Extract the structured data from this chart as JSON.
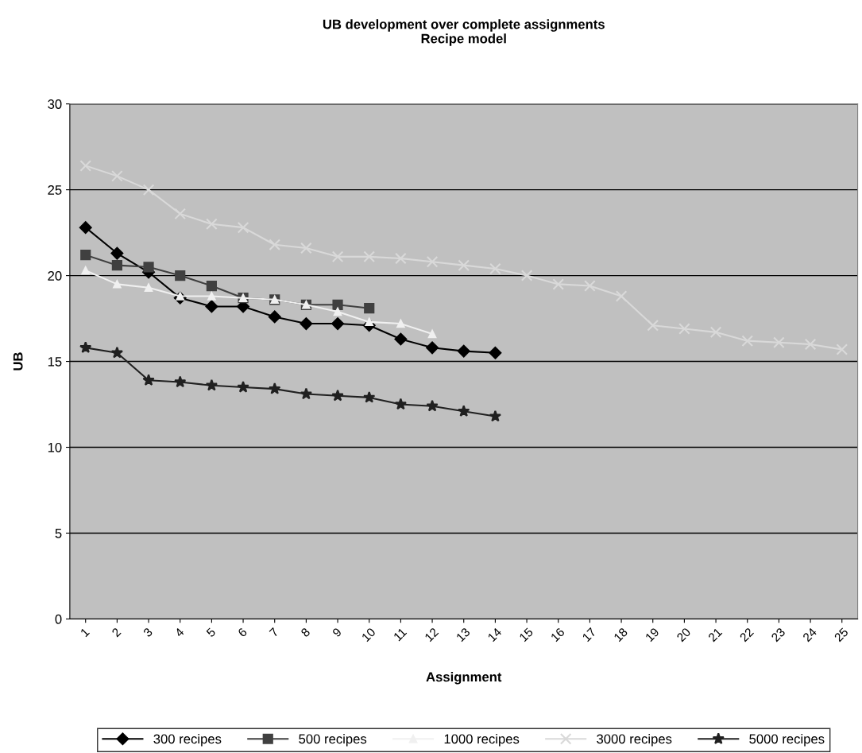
{
  "chart_data": {
    "type": "line",
    "title": "UB development over complete assignments\nRecipe model",
    "xlabel": "Assignment",
    "ylabel": "UB",
    "categories": [
      "1",
      "2",
      "3",
      "4",
      "5",
      "6",
      "7",
      "8",
      "9",
      "10",
      "11",
      "12",
      "13",
      "14",
      "15",
      "16",
      "17",
      "18",
      "19",
      "20",
      "21",
      "22",
      "23",
      "24",
      "25"
    ],
    "ylim": [
      0,
      30
    ],
    "yticks": [
      0,
      5,
      10,
      15,
      20,
      25,
      30
    ],
    "grid": "y",
    "legend": "bottom",
    "series": [
      {
        "name": "300 recipes",
        "color": "#000000",
        "marker": "diamond",
        "values": [
          22.8,
          21.3,
          20.2,
          18.7,
          18.2,
          18.2,
          17.6,
          17.2,
          17.2,
          17.1,
          16.3,
          15.8,
          15.6,
          15.5,
          null,
          null,
          null,
          null,
          null,
          null,
          null,
          null,
          null,
          null,
          null
        ]
      },
      {
        "name": "500 recipes",
        "color": "#404040",
        "marker": "square",
        "values": [
          21.2,
          20.6,
          20.5,
          20.0,
          19.4,
          18.7,
          18.6,
          18.3,
          18.3,
          18.1,
          null,
          null,
          null,
          null,
          null,
          null,
          null,
          null,
          null,
          null,
          null,
          null,
          null,
          null,
          null
        ]
      },
      {
        "name": "1000 recipes",
        "color": "#f0f0f0",
        "marker": "triangle",
        "values": [
          20.3,
          19.5,
          19.3,
          18.8,
          18.8,
          18.7,
          18.6,
          18.3,
          17.9,
          17.3,
          17.2,
          16.6,
          null,
          null,
          null,
          null,
          null,
          null,
          null,
          null,
          null,
          null,
          null,
          null,
          null
        ]
      },
      {
        "name": "3000 recipes",
        "color": "#d9d9d9",
        "marker": "cross",
        "values": [
          26.4,
          25.8,
          25.0,
          23.6,
          23.0,
          22.8,
          21.8,
          21.6,
          21.1,
          21.1,
          21.0,
          20.8,
          20.6,
          20.4,
          20.0,
          19.5,
          19.4,
          18.8,
          17.1,
          16.9,
          16.7,
          16.2,
          16.1,
          16.0,
          15.7
        ]
      },
      {
        "name": "5000 recipes",
        "color": "#202020",
        "marker": "star",
        "values": [
          15.8,
          15.5,
          13.9,
          13.8,
          13.6,
          13.5,
          13.4,
          13.1,
          13.0,
          12.9,
          12.5,
          12.4,
          12.1,
          11.8,
          null,
          null,
          null,
          null,
          null,
          null,
          null,
          null,
          null,
          null,
          null
        ]
      }
    ]
  }
}
